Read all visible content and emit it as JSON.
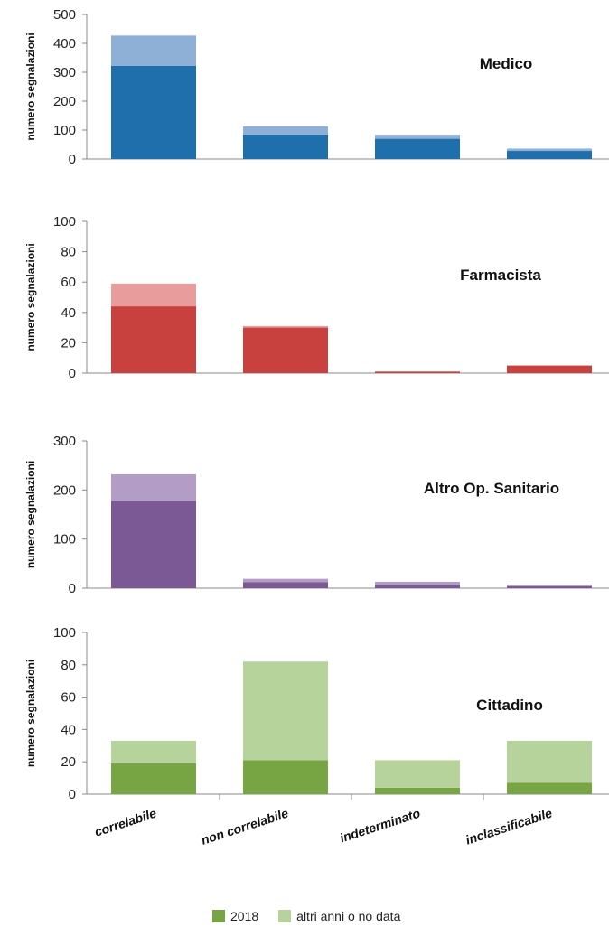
{
  "chart_data": [
    {
      "type": "bar",
      "stacked": true,
      "title": "Medico",
      "ylabel": "numero segnalazioni",
      "categories": [
        "correlabile",
        "non correlabile",
        "indeterminato",
        "inclassificabile"
      ],
      "ylim": [
        0,
        500
      ],
      "yticks": [
        0,
        100,
        200,
        300,
        400,
        500
      ],
      "series": [
        {
          "name": "2018",
          "values": [
            322,
            85,
            70,
            28
          ],
          "color": "#1f6fad"
        },
        {
          "name": "altri anni o no data",
          "values": [
            105,
            28,
            14,
            8
          ],
          "color": "#8eafd6"
        }
      ]
    },
    {
      "type": "bar",
      "stacked": true,
      "title": "Farmacista",
      "ylabel": "numero segnalazioni",
      "categories": [
        "correlabile",
        "non correlabile",
        "indeterminato",
        "inclassificabile"
      ],
      "ylim": [
        0,
        100
      ],
      "yticks": [
        0,
        20,
        40,
        60,
        80,
        100
      ],
      "series": [
        {
          "name": "2018",
          "values": [
            44,
            30,
            1,
            5
          ],
          "color": "#c9413f"
        },
        {
          "name": "altri anni o no data",
          "values": [
            15,
            1,
            0,
            0
          ],
          "color": "#e89c9c"
        }
      ]
    },
    {
      "type": "bar",
      "stacked": true,
      "title": "Altro Op. Sanitario",
      "ylabel": "numero segnalazioni",
      "categories": [
        "correlabile",
        "non correlabile",
        "indeterminato",
        "inclassificabile"
      ],
      "ylim": [
        0,
        300
      ],
      "yticks": [
        0,
        100,
        200,
        300
      ],
      "series": [
        {
          "name": "2018",
          "values": [
            178,
            12,
            6,
            4
          ],
          "color": "#7b5994"
        },
        {
          "name": "altri anni o no data",
          "values": [
            54,
            7,
            7,
            3
          ],
          "color": "#b39dc6"
        }
      ]
    },
    {
      "type": "bar",
      "stacked": true,
      "title": "Cittadino",
      "ylabel": "numero segnalazioni",
      "categories": [
        "correlabile",
        "non correlabile",
        "indeterminato",
        "inclassificabile"
      ],
      "ylim": [
        0,
        100
      ],
      "yticks": [
        0,
        20,
        40,
        60,
        80,
        100
      ],
      "series": [
        {
          "name": "2018",
          "values": [
            19,
            21,
            4,
            7
          ],
          "color": "#77a543"
        },
        {
          "name": "altri anni o no data",
          "values": [
            14,
            61,
            17,
            26
          ],
          "color": "#b6d39b"
        }
      ]
    }
  ],
  "category_labels": [
    "correlabile",
    "non correlabile",
    "indeterminato",
    "inclassificabile"
  ],
  "legend": {
    "items": [
      {
        "label": "2018",
        "color": "#77a543"
      },
      {
        "label": "altri anni o no data",
        "color": "#b6d39b"
      }
    ]
  }
}
